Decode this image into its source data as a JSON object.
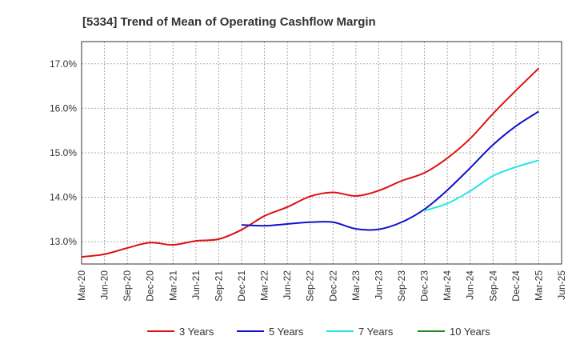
{
  "chart_data": {
    "type": "line",
    "title": "[5334]  Trend of Mean of Operating Cashflow Margin",
    "xlabel": "",
    "ylabel": "",
    "ylim": [
      12.5,
      17.5
    ],
    "yticks": [
      13.0,
      14.0,
      15.0,
      16.0,
      17.0
    ],
    "ytick_labels": [
      "13.0%",
      "14.0%",
      "15.0%",
      "16.0%",
      "17.0%"
    ],
    "grid": true,
    "legend_position": "bottom",
    "x_ticks": [
      "Mar-20",
      "Jun-20",
      "Sep-20",
      "Dec-20",
      "Mar-21",
      "Jun-21",
      "Sep-21",
      "Dec-21",
      "Mar-22",
      "Jun-22",
      "Sep-22",
      "Dec-22",
      "Mar-23",
      "Jun-23",
      "Sep-23",
      "Dec-23",
      "Mar-24",
      "Jun-24",
      "Sep-24",
      "Dec-24",
      "Mar-25",
      "Jun-25"
    ],
    "series": [
      {
        "name": "3 Years",
        "color": "#dd1111",
        "values": [
          {
            "x": "Mar-20",
            "y": 12.66
          },
          {
            "x": "Jun-20",
            "y": 12.72
          },
          {
            "x": "Sep-20",
            "y": 12.86
          },
          {
            "x": "Dec-20",
            "y": 12.98
          },
          {
            "x": "Mar-21",
            "y": 12.93
          },
          {
            "x": "Jun-21",
            "y": 13.02
          },
          {
            "x": "Sep-21",
            "y": 13.06
          },
          {
            "x": "Dec-21",
            "y": 13.27
          },
          {
            "x": "Mar-22",
            "y": 13.58
          },
          {
            "x": "Jun-22",
            "y": 13.78
          },
          {
            "x": "Sep-22",
            "y": 14.02
          },
          {
            "x": "Dec-22",
            "y": 14.11
          },
          {
            "x": "Mar-23",
            "y": 14.03
          },
          {
            "x": "Jun-23",
            "y": 14.15
          },
          {
            "x": "Sep-23",
            "y": 14.37
          },
          {
            "x": "Dec-23",
            "y": 14.55
          },
          {
            "x": "Mar-24",
            "y": 14.88
          },
          {
            "x": "Jun-24",
            "y": 15.32
          },
          {
            "x": "Sep-24",
            "y": 15.88
          },
          {
            "x": "Dec-24",
            "y": 16.4
          },
          {
            "x": "Mar-25",
            "y": 16.9
          }
        ]
      },
      {
        "name": "5 Years",
        "color": "#1111cc",
        "values": [
          {
            "x": "Dec-21",
            "y": 13.38
          },
          {
            "x": "Mar-22",
            "y": 13.36
          },
          {
            "x": "Jun-22",
            "y": 13.4
          },
          {
            "x": "Sep-22",
            "y": 13.44
          },
          {
            "x": "Dec-22",
            "y": 13.44
          },
          {
            "x": "Mar-23",
            "y": 13.29
          },
          {
            "x": "Jun-23",
            "y": 13.28
          },
          {
            "x": "Sep-23",
            "y": 13.44
          },
          {
            "x": "Dec-23",
            "y": 13.73
          },
          {
            "x": "Mar-24",
            "y": 14.16
          },
          {
            "x": "Jun-24",
            "y": 14.66
          },
          {
            "x": "Sep-24",
            "y": 15.18
          },
          {
            "x": "Dec-24",
            "y": 15.6
          },
          {
            "x": "Mar-25",
            "y": 15.93
          }
        ]
      },
      {
        "name": "7 Years",
        "color": "#22e5e5",
        "values": [
          {
            "x": "Dec-23",
            "y": 13.7
          },
          {
            "x": "Mar-24",
            "y": 13.86
          },
          {
            "x": "Jun-24",
            "y": 14.14
          },
          {
            "x": "Sep-24",
            "y": 14.48
          },
          {
            "x": "Dec-24",
            "y": 14.68
          },
          {
            "x": "Mar-25",
            "y": 14.83
          }
        ]
      },
      {
        "name": "10 Years",
        "color": "#228822",
        "values": []
      }
    ]
  }
}
